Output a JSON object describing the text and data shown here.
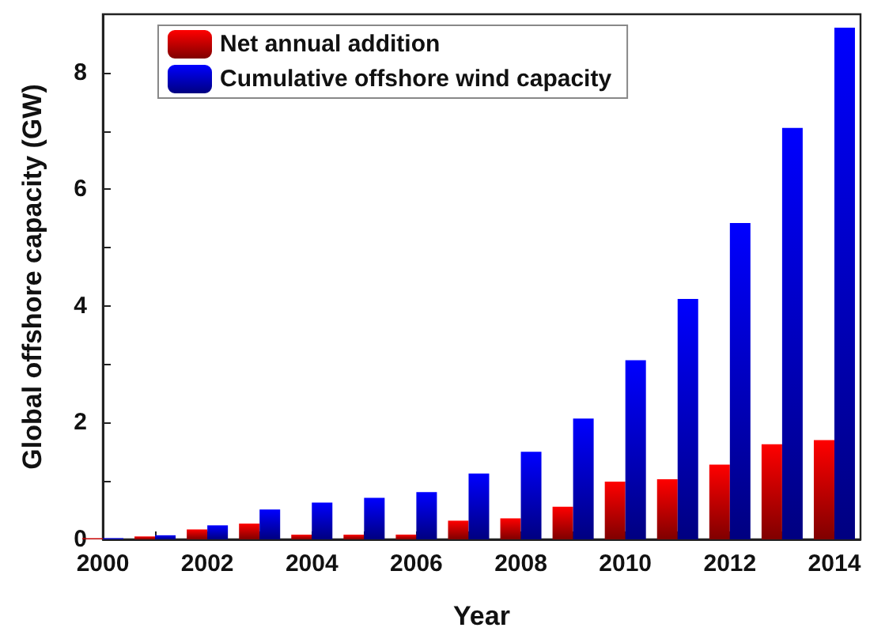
{
  "chart_data": {
    "type": "bar",
    "xlabel": "Year",
    "ylabel": "Global offshore capacity (GW)",
    "x": [
      2000,
      2001,
      2002,
      2003,
      2004,
      2005,
      2006,
      2007,
      2008,
      2009,
      2010,
      2011,
      2012,
      2013,
      2014
    ],
    "series": [
      {
        "name": "Net annual addition",
        "color": "#ff0000",
        "values": [
          0.02,
          0.05,
          0.17,
          0.27,
          0.08,
          0.08,
          0.08,
          0.32,
          0.36,
          0.56,
          0.99,
          1.03,
          1.28,
          1.63,
          1.7
        ]
      },
      {
        "name": "Cumulative offshore wind capacity",
        "color": "#0000ff",
        "values": [
          0.02,
          0.07,
          0.24,
          0.51,
          0.63,
          0.71,
          0.81,
          1.13,
          1.5,
          2.07,
          3.07,
          4.12,
          5.42,
          7.05,
          8.77
        ]
      }
    ],
    "xlim": [
      2000,
      2014.5
    ],
    "xticks": [
      2000,
      {
        "value": 2001,
        "label": null
      },
      2002,
      {
        "value": 2003,
        "label": null
      },
      2004,
      {
        "value": 2005,
        "label": null
      },
      2006,
      {
        "value": 2007,
        "label": null
      },
      2008,
      {
        "value": 2009,
        "label": null
      },
      2010,
      {
        "value": 2011,
        "label": null
      },
      2012,
      {
        "value": 2013,
        "label": null
      },
      2014
    ],
    "ylim": [
      0,
      9
    ],
    "yticks": [
      0,
      {
        "value": 1,
        "label": null
      },
      2,
      {
        "value": 3,
        "label": null
      },
      4,
      {
        "value": 5,
        "label": null
      },
      6,
      {
        "value": 7,
        "label": null
      },
      8
    ],
    "grid": false,
    "legend": "top left"
  }
}
